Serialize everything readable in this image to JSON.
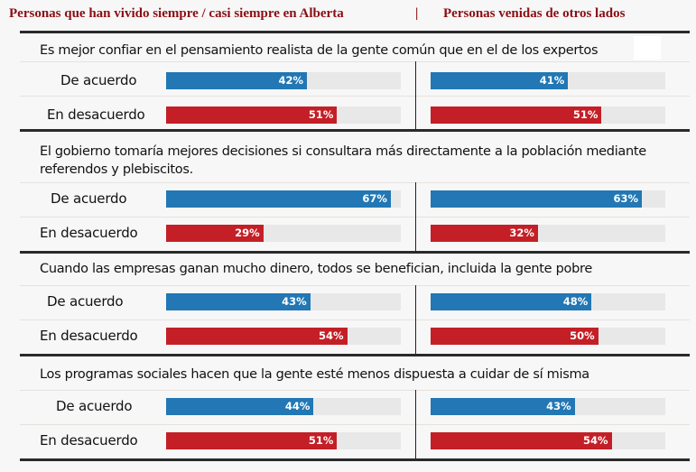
{
  "header": {
    "left_title": "Personas que han vivido siempre / casi siempre en Alberta",
    "separator": "|",
    "right_title": "Personas venidas de otros lados"
  },
  "colors": {
    "agree": "#2277b4",
    "disagree": "#c41f26",
    "header": "#8b0e14",
    "track": "#e8e8e8"
  },
  "chart_data": {
    "type": "bar",
    "orientation": "horizontal",
    "groups": [
      "Personas que han vivido siempre / casi siempre en Alberta",
      "Personas venidas de otros lados"
    ],
    "categories": [
      "De acuerdo",
      "En desacuerdo"
    ],
    "xlim": [
      0,
      70
    ],
    "questions": [
      {
        "text": "Es mejor confiar en el pensamiento realista de la gente común que en el de los expertos",
        "rows": [
          {
            "label": "De acuerdo",
            "alberta": 42,
            "alberta_label": "42%",
            "others": 41,
            "others_label": "41%"
          },
          {
            "label": "En desacuerdo",
            "alberta": 51,
            "alberta_label": "51%",
            "others": 51,
            "others_label": "51%"
          }
        ]
      },
      {
        "text": "El gobierno tomaría mejores decisiones si consultara más directamente a la población mediante referendos y plebiscitos.",
        "rows": [
          {
            "label": "De acuerdo",
            "alberta": 67,
            "alberta_label": "67%",
            "others": 63,
            "others_label": "63%"
          },
          {
            "label": "En desacuerdo",
            "alberta": 29,
            "alberta_label": "29%",
            "others": 32,
            "others_label": "32%"
          }
        ]
      },
      {
        "text": "Cuando las empresas ganan mucho dinero, todos se benefician, incluida la gente pobre",
        "rows": [
          {
            "label": "De acuerdo",
            "alberta": 43,
            "alberta_label": "43%",
            "others": 48,
            "others_label": "48%"
          },
          {
            "label": "En desacuerdo",
            "alberta": 54,
            "alberta_label": "54%",
            "others": 50,
            "others_label": "50%"
          }
        ]
      },
      {
        "text": "Los programas sociales hacen que la gente esté menos dispuesta a cuidar de sí misma",
        "rows": [
          {
            "label": "De acuerdo",
            "alberta": 44,
            "alberta_label": "44%",
            "others": 43,
            "others_label": "43%"
          },
          {
            "label": "En desacuerdo",
            "alberta": 51,
            "alberta_label": "51%",
            "others": 54,
            "others_label": "54%"
          }
        ]
      }
    ]
  }
}
